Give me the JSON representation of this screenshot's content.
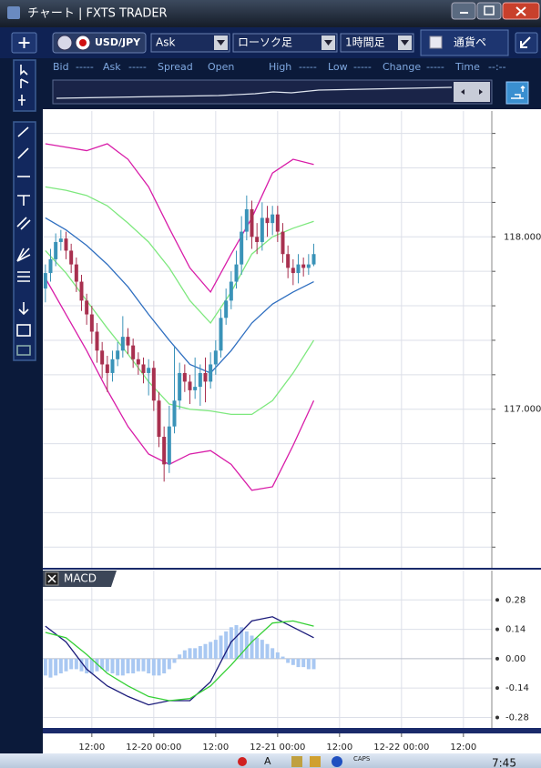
{
  "window": {
    "title": "チャート | FXTS TRADER"
  },
  "toolbar": {
    "symbol": "USD/JPY",
    "price_type": "Ask",
    "chart_style": "ローソク足",
    "timeframe": "1時間足",
    "pair_toggle": "通貨ペ"
  },
  "quote": [
    {
      "label": "Bid",
      "value": "-----"
    },
    {
      "label": "Ask",
      "value": "-----"
    },
    {
      "label": "Spread"
    },
    {
      "label": "Open"
    },
    {
      "label": "High",
      "value": "-----"
    },
    {
      "label": "Low",
      "value": "-----"
    },
    {
      "label": "Change",
      "value": "-----"
    },
    {
      "label": "Time",
      "value": "--:--"
    }
  ],
  "chart_data": [
    {
      "type": "candlestick",
      "x": [
        -21,
        -20,
        -19,
        -18,
        -17,
        -16,
        -15,
        -14,
        -13,
        -12,
        -11,
        -10,
        -9,
        -8,
        -7,
        -6,
        -5,
        -4,
        -3,
        -2,
        -1,
        0,
        1,
        2,
        3,
        4,
        5,
        6,
        7,
        8,
        9,
        10,
        11,
        12,
        13,
        14,
        15,
        16,
        17,
        18,
        19,
        20,
        21,
        22,
        23,
        24,
        25,
        26,
        27,
        28,
        29,
        30,
        31
      ],
      "open": [
        117.7,
        117.79,
        117.87,
        117.97,
        117.99,
        117.92,
        117.84,
        117.74,
        117.63,
        117.55,
        117.45,
        117.34,
        117.26,
        117.21,
        117.29,
        117.34,
        117.42,
        117.37,
        117.29,
        117.26,
        117.21,
        117.24,
        117.05,
        116.84,
        116.68,
        116.9,
        117.05,
        117.21,
        117.16,
        117.11,
        117.13,
        117.21,
        117.16,
        117.26,
        117.34,
        117.53,
        117.63,
        117.74,
        117.84,
        118.03,
        118.16,
        118.0,
        117.97,
        118.11,
        118.08,
        118.13,
        118.03,
        117.9,
        117.82,
        117.79,
        117.84,
        117.82,
        117.84
      ],
      "high": [
        117.84,
        117.93,
        118.02,
        118.04,
        118.03,
        117.96,
        117.88,
        117.78,
        117.67,
        117.6,
        117.5,
        117.39,
        117.31,
        117.34,
        117.39,
        117.54,
        117.47,
        117.41,
        117.33,
        117.3,
        117.29,
        117.28,
        117.1,
        116.9,
        117.02,
        117.36,
        117.27,
        117.26,
        117.2,
        117.3,
        117.26,
        117.3,
        117.33,
        117.4,
        117.58,
        117.7,
        117.8,
        117.92,
        118.12,
        118.24,
        118.21,
        118.08,
        118.2,
        118.18,
        118.18,
        118.18,
        118.08,
        117.95,
        117.87,
        117.9,
        117.88,
        117.9,
        117.96
      ],
      "low": [
        117.62,
        117.74,
        117.83,
        117.92,
        117.87,
        117.79,
        117.68,
        117.57,
        117.49,
        117.38,
        117.27,
        117.18,
        117.1,
        117.16,
        117.25,
        117.3,
        117.32,
        117.24,
        117.2,
        117.15,
        117.08,
        116.99,
        116.78,
        116.58,
        116.63,
        116.86,
        117.0,
        117.1,
        117.03,
        117.06,
        117.02,
        117.04,
        117.12,
        117.2,
        117.3,
        117.49,
        117.58,
        117.7,
        117.78,
        117.98,
        117.93,
        117.9,
        117.92,
        118.0,
        118.01,
        117.97,
        117.85,
        117.76,
        117.72,
        117.73,
        117.77,
        117.78,
        117.83
      ],
      "close": [
        117.79,
        117.87,
        117.97,
        117.99,
        117.92,
        117.84,
        117.74,
        117.63,
        117.55,
        117.45,
        117.34,
        117.26,
        117.21,
        117.29,
        117.34,
        117.42,
        117.37,
        117.29,
        117.26,
        117.21,
        117.24,
        117.05,
        116.84,
        116.68,
        116.9,
        117.05,
        117.21,
        117.16,
        117.11,
        117.13,
        117.21,
        117.16,
        117.26,
        117.34,
        117.53,
        117.63,
        117.74,
        117.84,
        118.03,
        118.16,
        118.0,
        117.97,
        118.11,
        118.08,
        118.13,
        118.03,
        117.9,
        117.82,
        117.79,
        117.84,
        117.82,
        117.84,
        117.9
      ],
      "up_color": "#3a93b8",
      "down_color": "#a8304f",
      "band_x": [
        -21,
        -17,
        -13,
        -9,
        -5,
        -1,
        3,
        7,
        11,
        15,
        19,
        23,
        27,
        31
      ],
      "bands": [
        {
          "color": "#d81ca8",
          "values": [
            118.54,
            118.52,
            118.5,
            118.54,
            118.45,
            118.29,
            118.05,
            117.82,
            117.68,
            117.9,
            118.11,
            118.37,
            118.45,
            118.42
          ]
        },
        {
          "color": "#7ee87e",
          "values": [
            118.29,
            118.27,
            118.24,
            118.18,
            118.08,
            117.97,
            117.82,
            117.63,
            117.5,
            117.68,
            117.9,
            118.0,
            118.05,
            118.09
          ]
        },
        {
          "color": "#2f6fc0",
          "values": [
            118.11,
            118.04,
            117.95,
            117.84,
            117.71,
            117.55,
            117.4,
            117.26,
            117.21,
            117.34,
            117.5,
            117.61,
            117.68,
            117.74
          ]
        },
        {
          "color": "#7ee87e",
          "values": [
            117.92,
            117.79,
            117.63,
            117.47,
            117.32,
            117.16,
            117.03,
            117.0,
            116.99,
            116.97,
            116.97,
            117.05,
            117.21,
            117.4
          ]
        },
        {
          "color": "#d81ca8",
          "values": [
            117.76,
            117.55,
            117.34,
            117.11,
            116.9,
            116.74,
            116.68,
            116.74,
            116.76,
            116.68,
            116.53,
            116.55,
            116.79,
            117.05
          ]
        }
      ],
      "xlim": [
        -21.5,
        65.5
      ],
      "xticks": [
        {
          "value": -12,
          "label": "12:00"
        },
        {
          "value": 0,
          "label": "12-20 00:00"
        },
        {
          "value": 12,
          "label": "12:00"
        },
        {
          "value": 24,
          "label": "12-21 00:00"
        },
        {
          "value": 36,
          "label": "12:00"
        },
        {
          "value": 48,
          "label": "12-22 00:00"
        },
        {
          "value": 60,
          "label": "12:00"
        }
      ],
      "ylim": [
        116.08,
        118.73
      ],
      "yticks": [
        {
          "value": 118,
          "label": "118.000"
        },
        {
          "value": 117,
          "label": "117.000"
        }
      ],
      "ygrid": [
        116.2,
        116.4,
        116.6,
        116.8,
        117.0,
        117.2,
        117.4,
        117.6,
        117.8,
        118.0,
        118.2,
        118.4,
        118.6
      ]
    },
    {
      "type": "macd",
      "title": "MACD",
      "histogram": [
        -0.08,
        -0.09,
        -0.08,
        -0.07,
        -0.06,
        -0.05,
        -0.05,
        -0.06,
        -0.07,
        -0.07,
        -0.06,
        -0.05,
        -0.06,
        -0.07,
        -0.08,
        -0.08,
        -0.07,
        -0.07,
        -0.06,
        -0.06,
        -0.07,
        -0.08,
        -0.08,
        -0.07,
        -0.05,
        -0.02,
        0.02,
        0.04,
        0.05,
        0.05,
        0.06,
        0.07,
        0.08,
        0.09,
        0.11,
        0.13,
        0.15,
        0.16,
        0.15,
        0.13,
        0.11,
        0.1,
        0.09,
        0.07,
        0.05,
        0.03,
        0.01,
        -0.02,
        -0.03,
        -0.04,
        -0.04,
        -0.05,
        -0.05
      ],
      "histogram_color": "#a9c8f2",
      "line_x": [
        -21,
        -17,
        -13,
        -9,
        -5,
        -1,
        3,
        7,
        11,
        15,
        19,
        23,
        27,
        31
      ],
      "series": [
        {
          "color": "#1a1a7a",
          "values": [
            0.155,
            0.08,
            -0.05,
            -0.13,
            -0.18,
            -0.22,
            -0.2,
            -0.2,
            -0.11,
            0.08,
            0.18,
            0.2,
            0.15,
            0.1
          ]
        },
        {
          "color": "#35d035",
          "values": [
            0.125,
            0.1,
            0.02,
            -0.07,
            -0.13,
            -0.18,
            -0.2,
            -0.19,
            -0.13,
            -0.03,
            0.08,
            0.17,
            0.18,
            0.155
          ]
        }
      ],
      "ylim": [
        -0.33,
        0.42
      ],
      "yticks": [
        0.28,
        0.14,
        {
          "value": 0,
          "label": "0.00"
        },
        -0.14,
        -0.28
      ]
    }
  ],
  "taskbar": {
    "ime": "A",
    "caps": "CAPS",
    "clock": "7:45"
  }
}
